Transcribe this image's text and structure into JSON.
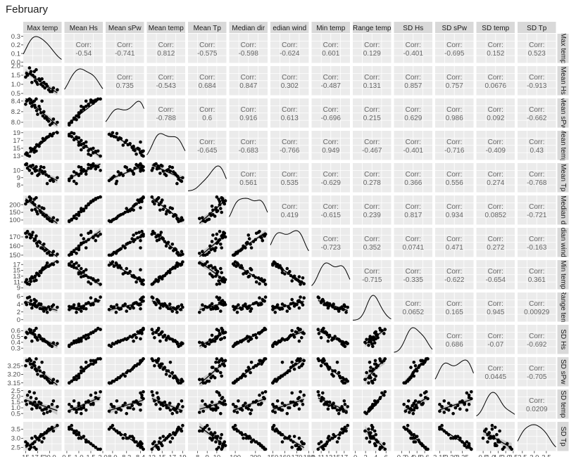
{
  "title": "February",
  "chart_data": {
    "type": "scatter",
    "variables": [
      "Max temp",
      "Mean Hs",
      "Mean sPw",
      "Mean temp",
      "Mean Tp",
      "Median dir",
      "Median wind",
      "Min temp",
      "Range temp",
      "SD Hs",
      "SD sPw",
      "SD temp",
      "SD Tp"
    ],
    "column_strip_labels": [
      "Max temp",
      "Mean Hs",
      "Mean sPw",
      "Mean temp",
      "Mean Tp",
      "Median dir",
      "edian wind",
      "Min temp",
      "Range temp",
      "SD Hs",
      "SD sPw",
      "SD temp",
      "SD Tp"
    ],
    "row_strip_labels": [
      "Max temp",
      "Mean Hs",
      "Mean sPw",
      "Mean temp",
      "Mean Tp",
      "Median d",
      "dian wind",
      "Min temp",
      "Range tem",
      "SD Hs",
      "SD sPw",
      "SD temp",
      "SD Tp"
    ],
    "corr_label": "Corr:",
    "correlations": [
      {
        "row": 0,
        "col": 1,
        "value": "-0.54"
      },
      {
        "row": 0,
        "col": 2,
        "value": "-0.741"
      },
      {
        "row": 0,
        "col": 3,
        "value": "0.812"
      },
      {
        "row": 0,
        "col": 4,
        "value": "-0.575"
      },
      {
        "row": 0,
        "col": 5,
        "value": "-0.598"
      },
      {
        "row": 0,
        "col": 6,
        "value": "-0.624"
      },
      {
        "row": 0,
        "col": 7,
        "value": "0.601"
      },
      {
        "row": 0,
        "col": 8,
        "value": "0.129"
      },
      {
        "row": 0,
        "col": 9,
        "value": "-0.401"
      },
      {
        "row": 0,
        "col": 10,
        "value": "-0.695"
      },
      {
        "row": 0,
        "col": 11,
        "value": "0.152"
      },
      {
        "row": 0,
        "col": 12,
        "value": "0.523"
      },
      {
        "row": 1,
        "col": 2,
        "value": "0.735"
      },
      {
        "row": 1,
        "col": 3,
        "value": "-0.543"
      },
      {
        "row": 1,
        "col": 4,
        "value": "0.684"
      },
      {
        "row": 1,
        "col": 5,
        "value": "0.847"
      },
      {
        "row": 1,
        "col": 6,
        "value": "0.302"
      },
      {
        "row": 1,
        "col": 7,
        "value": "-0.487"
      },
      {
        "row": 1,
        "col": 8,
        "value": "0.131"
      },
      {
        "row": 1,
        "col": 9,
        "value": "0.857"
      },
      {
        "row": 1,
        "col": 10,
        "value": "0.757"
      },
      {
        "row": 1,
        "col": 11,
        "value": "0.0676"
      },
      {
        "row": 1,
        "col": 12,
        "value": "-0.913"
      },
      {
        "row": 2,
        "col": 3,
        "value": "-0.788"
      },
      {
        "row": 2,
        "col": 4,
        "value": "0.6"
      },
      {
        "row": 2,
        "col": 5,
        "value": "0.916"
      },
      {
        "row": 2,
        "col": 6,
        "value": "0.613"
      },
      {
        "row": 2,
        "col": 7,
        "value": "-0.696"
      },
      {
        "row": 2,
        "col": 8,
        "value": "0.215"
      },
      {
        "row": 2,
        "col": 9,
        "value": "0.629"
      },
      {
        "row": 2,
        "col": 10,
        "value": "0.986"
      },
      {
        "row": 2,
        "col": 11,
        "value": "0.092"
      },
      {
        "row": 2,
        "col": 12,
        "value": "-0.662"
      },
      {
        "row": 3,
        "col": 4,
        "value": "-0.645"
      },
      {
        "row": 3,
        "col": 5,
        "value": "-0.683"
      },
      {
        "row": 3,
        "col": 6,
        "value": "-0.766"
      },
      {
        "row": 3,
        "col": 7,
        "value": "0.949"
      },
      {
        "row": 3,
        "col": 8,
        "value": "-0.467"
      },
      {
        "row": 3,
        "col": 9,
        "value": "-0.401"
      },
      {
        "row": 3,
        "col": 10,
        "value": "-0.716"
      },
      {
        "row": 3,
        "col": 11,
        "value": "-0.409"
      },
      {
        "row": 3,
        "col": 12,
        "value": "0.43"
      },
      {
        "row": 4,
        "col": 5,
        "value": "0.561"
      },
      {
        "row": 4,
        "col": 6,
        "value": "0.535"
      },
      {
        "row": 4,
        "col": 7,
        "value": "-0.629"
      },
      {
        "row": 4,
        "col": 8,
        "value": "0.278"
      },
      {
        "row": 4,
        "col": 9,
        "value": "0.366"
      },
      {
        "row": 4,
        "col": 10,
        "value": "0.556"
      },
      {
        "row": 4,
        "col": 11,
        "value": "0.274"
      },
      {
        "row": 4,
        "col": 12,
        "value": "-0.768"
      },
      {
        "row": 5,
        "col": 6,
        "value": "0.419"
      },
      {
        "row": 5,
        "col": 7,
        "value": "-0.615"
      },
      {
        "row": 5,
        "col": 8,
        "value": "0.239"
      },
      {
        "row": 5,
        "col": 9,
        "value": "0.817"
      },
      {
        "row": 5,
        "col": 10,
        "value": "0.934"
      },
      {
        "row": 5,
        "col": 11,
        "value": "0.0852"
      },
      {
        "row": 5,
        "col": 12,
        "value": "-0.721"
      },
      {
        "row": 6,
        "col": 7,
        "value": "-0.723"
      },
      {
        "row": 6,
        "col": 8,
        "value": "0.352"
      },
      {
        "row": 6,
        "col": 9,
        "value": "0.0741"
      },
      {
        "row": 6,
        "col": 10,
        "value": "0.471"
      },
      {
        "row": 6,
        "col": 11,
        "value": "0.272"
      },
      {
        "row": 6,
        "col": 12,
        "value": "-0.163"
      },
      {
        "row": 7,
        "col": 8,
        "value": "-0.715"
      },
      {
        "row": 7,
        "col": 9,
        "value": "-0.335"
      },
      {
        "row": 7,
        "col": 10,
        "value": "-0.622"
      },
      {
        "row": 7,
        "col": 11,
        "value": "-0.654"
      },
      {
        "row": 7,
        "col": 12,
        "value": "0.361"
      },
      {
        "row": 8,
        "col": 9,
        "value": "0.0652"
      },
      {
        "row": 8,
        "col": 10,
        "value": "0.165"
      },
      {
        "row": 8,
        "col": 11,
        "value": "0.945"
      },
      {
        "row": 8,
        "col": 12,
        "value": "0.00929"
      },
      {
        "row": 9,
        "col": 10,
        "value": "0.686"
      },
      {
        "row": 9,
        "col": 11,
        "value": "-0.07"
      },
      {
        "row": 9,
        "col": 12,
        "value": "-0.692"
      },
      {
        "row": 10,
        "col": 11,
        "value": "0.0445"
      },
      {
        "row": 10,
        "col": 12,
        "value": "-0.705"
      },
      {
        "row": 11,
        "col": 12,
        "value": "0.0209"
      }
    ],
    "ranges": [
      [
        14.5,
        22.5
      ],
      [
        0.4,
        2.0
      ],
      [
        7.9,
        8.45
      ],
      [
        12,
        19.5
      ],
      [
        7,
        11
      ],
      [
        70,
        260
      ],
      [
        148,
        180
      ],
      [
        8.5,
        18.5
      ],
      [
        -0.5,
        7
      ],
      [
        0.2,
        0.7
      ],
      [
        3.13,
        3.3
      ],
      [
        0.05,
        2.6
      ],
      [
        2.3,
        3.9
      ]
    ],
    "y_axis_ticks": [
      {
        "row": 0,
        "labels": [
          "0.3",
          "0.2",
          "0.1",
          "0.0"
        ],
        "values": [
          0.3,
          0.2,
          0.1,
          0.0
        ],
        "range": [
          -0.01,
          0.33
        ]
      },
      {
        "row": 1,
        "labels": [
          "2.0",
          "1.5",
          "1.0",
          "0.5"
        ],
        "values": [
          2.0,
          1.5,
          1.0,
          0.5
        ]
      },
      {
        "row": 2,
        "labels": [
          "8.4",
          "8.2",
          "8.0"
        ],
        "values": [
          8.4,
          8.2,
          8.0
        ]
      },
      {
        "row": 3,
        "labels": [
          "19",
          "17",
          "15",
          "13"
        ],
        "values": [
          19,
          17,
          15,
          13
        ]
      },
      {
        "row": 4,
        "labels": [
          "10",
          "9",
          "8"
        ],
        "values": [
          10,
          9,
          8
        ]
      },
      {
        "row": 5,
        "labels": [
          "200",
          "150",
          "100"
        ],
        "values": [
          200,
          150,
          100
        ]
      },
      {
        "row": 6,
        "labels": [
          "170",
          "160",
          "150"
        ],
        "values": [
          170,
          160,
          150
        ]
      },
      {
        "row": 7,
        "labels": [
          "17",
          "15",
          "13",
          "11",
          "9"
        ],
        "values": [
          17,
          15,
          13,
          11,
          9
        ]
      },
      {
        "row": 8,
        "labels": [
          "6",
          "4",
          "2",
          "0"
        ],
        "values": [
          6,
          4,
          2,
          0
        ]
      },
      {
        "row": 9,
        "labels": [
          "0.6",
          "0.5",
          "0.4",
          "0.3"
        ],
        "values": [
          0.6,
          0.5,
          0.4,
          0.3
        ]
      },
      {
        "row": 10,
        "labels": [
          "3.25",
          "3.20",
          "3.15"
        ],
        "values": [
          3.25,
          3.2,
          3.15
        ]
      },
      {
        "row": 11,
        "labels": [
          "2.5",
          "2.0",
          "1.5",
          "1.0",
          "0.5"
        ],
        "values": [
          2.5,
          2.0,
          1.5,
          1.0,
          0.5
        ]
      },
      {
        "row": 12,
        "labels": [
          "3.5",
          "3.0",
          "2.5"
        ],
        "values": [
          3.5,
          3.0,
          2.5
        ]
      }
    ],
    "x_axis_ticks": [
      {
        "col": 0,
        "labels": [
          "15",
          "17.5",
          "20.0"
        ],
        "values": [
          15,
          17.5,
          20
        ]
      },
      {
        "col": 1,
        "labels": [
          "0.5",
          "1.0",
          "1.5",
          "2.0"
        ],
        "values": [
          0.5,
          1.0,
          1.5,
          2.0
        ]
      },
      {
        "col": 2,
        "labels": [
          "8.0",
          "8.2",
          "8.4"
        ],
        "values": [
          8.0,
          8.2,
          8.4
        ]
      },
      {
        "col": 3,
        "labels": [
          "13",
          "15",
          "17",
          "19"
        ],
        "values": [
          13,
          15,
          17,
          19
        ]
      },
      {
        "col": 4,
        "labels": [
          "8",
          "9",
          "10"
        ],
        "values": [
          8,
          9,
          10
        ]
      },
      {
        "col": 5,
        "labels": [
          "100",
          "200"
        ],
        "values": [
          100,
          200
        ]
      },
      {
        "col": 6,
        "labels": [
          "150",
          "160",
          "170",
          "180"
        ],
        "values": [
          150,
          160,
          170,
          180
        ]
      },
      {
        "col": 7,
        "labels": [
          "9",
          "11",
          "13",
          "15",
          "17"
        ],
        "values": [
          9,
          11,
          13,
          15,
          17
        ]
      },
      {
        "col": 8,
        "labels": [
          "0",
          "2",
          "4",
          "6"
        ],
        "values": [
          0,
          2,
          4,
          6
        ]
      },
      {
        "col": 9,
        "labels": [
          "0.3",
          "0.4",
          "0.5",
          "0.6"
        ],
        "values": [
          0.3,
          0.4,
          0.5,
          0.6
        ]
      },
      {
        "col": 10,
        "labels": [
          "3.15",
          "3.20",
          "3.25"
        ],
        "values": [
          3.15,
          3.2,
          3.25
        ]
      },
      {
        "col": 11,
        "labels": [
          "0.5",
          "1.0",
          "1.5",
          "2.0",
          "2.5"
        ],
        "values": [
          0.5,
          1.0,
          1.5,
          2.0,
          2.5
        ]
      },
      {
        "col": 12,
        "labels": [
          "2.5",
          "3.0",
          "3.5"
        ],
        "values": [
          2.5,
          3.0,
          3.5
        ]
      }
    ],
    "observations": [
      [
        16.3,
        1.1,
        8.3,
        14.6,
        9.6,
        165,
        172,
        12.8,
        3.0,
        0.42,
        3.24,
        0.9,
        3.0
      ],
      [
        18.4,
        1.3,
        8.4,
        16.6,
        9.9,
        180,
        158,
        15.2,
        2.8,
        0.46,
        3.27,
        0.8,
        2.8
      ],
      [
        15.4,
        1.5,
        8.42,
        13.2,
        10.3,
        220,
        176,
        10.4,
        5.6,
        0.55,
        3.28,
        2.1,
        2.7
      ],
      [
        20.1,
        0.6,
        7.95,
        18.6,
        8.6,
        95,
        150,
        16.8,
        2.6,
        0.35,
        3.15,
        0.7,
        3.5
      ],
      [
        17.2,
        1.8,
        8.44,
        14.3,
        10.5,
        245,
        171,
        11.6,
        4.8,
        0.64,
        3.29,
        1.8,
        2.4
      ],
      [
        19.5,
        0.9,
        8.05,
        17.9,
        8.2,
        110,
        152,
        17.5,
        1.9,
        0.4,
        3.17,
        0.6,
        3.4
      ],
      [
        16.0,
        1.6,
        8.36,
        15.0,
        10.6,
        230,
        169,
        12.1,
        4.0,
        0.58,
        3.26,
        1.4,
        2.6
      ],
      [
        21.6,
        0.7,
        8.0,
        19.0,
        9.0,
        100,
        151,
        17.9,
        3.2,
        0.38,
        3.16,
        1.1,
        3.7
      ],
      [
        18.0,
        1.2,
        8.25,
        16.2,
        10.1,
        160,
        164,
        14.6,
        2.9,
        0.5,
        3.22,
        1.0,
        3.1
      ],
      [
        15.0,
        1.4,
        8.34,
        13.5,
        10.8,
        205,
        174,
        11.0,
        4.4,
        0.48,
        3.25,
        1.6,
        2.8
      ],
      [
        17.5,
        1.0,
        8.15,
        15.8,
        9.3,
        140,
        160,
        13.8,
        3.6,
        0.44,
        3.2,
        1.2,
        3.0
      ],
      [
        19.0,
        0.8,
        8.08,
        17.2,
        9.8,
        125,
        155,
        16.0,
        3.0,
        0.42,
        3.18,
        0.9,
        3.3
      ],
      [
        16.8,
        1.7,
        8.4,
        14.0,
        10.2,
        235,
        166,
        11.4,
        5.2,
        0.6,
        3.27,
        2.3,
        2.5
      ],
      [
        20.5,
        0.6,
        7.98,
        18.2,
        8.8,
        90,
        150,
        17.2,
        3.4,
        0.33,
        3.15,
        1.3,
        3.6
      ],
      [
        15.8,
        1.9,
        8.44,
        13.0,
        10.0,
        250,
        173,
        10.2,
        5.8,
        0.62,
        3.29,
        2.4,
        2.4
      ],
      [
        18.8,
        1.1,
        8.2,
        17.0,
        10.4,
        175,
        162,
        15.6,
        2.2,
        0.45,
        3.21,
        0.5,
        3.0
      ],
      [
        17.8,
        1.3,
        8.3,
        15.5,
        9.5,
        190,
        165,
        13.2,
        4.1,
        0.52,
        3.24,
        1.5,
        2.9
      ],
      [
        16.5,
        1.5,
        8.38,
        14.8,
        10.7,
        215,
        175,
        12.4,
        3.8,
        0.56,
        3.26,
        1.3,
        2.7
      ],
      [
        19.8,
        0.7,
        8.02,
        18.0,
        9.2,
        105,
        153,
        16.4,
        3.3,
        0.37,
        3.16,
        1.1,
        3.5
      ],
      [
        17.0,
        1.2,
        8.28,
        15.2,
        9.9,
        170,
        168,
        13.0,
        3.5,
        0.49,
        3.23,
        1.2,
        3.1
      ],
      [
        18.2,
        1.0,
        8.18,
        16.5,
        10.5,
        150,
        158,
        14.2,
        4.0,
        0.46,
        3.19,
        1.4,
        3.2
      ],
      [
        15.2,
        1.6,
        8.4,
        13.8,
        10.9,
        225,
        170,
        11.8,
        3.9,
        0.57,
        3.28,
        1.3,
        2.6
      ],
      [
        20.8,
        0.8,
        8.06,
        18.8,
        8.5,
        115,
        154,
        17.0,
        3.8,
        0.39,
        3.17,
        1.6,
        3.4
      ],
      [
        16.9,
        1.4,
        8.32,
        14.4,
        10.3,
        200,
        167,
        12.6,
        4.3,
        0.53,
        3.25,
        1.5,
        2.8
      ],
      [
        18.6,
        0.9,
        8.12,
        17.5,
        9.6,
        135,
        157,
        15.8,
        2.8,
        0.43,
        3.19,
        0.8,
        3.2
      ],
      [
        17.3,
        1.1,
        8.22,
        15.9,
        10.0,
        155,
        163,
        14.0,
        3.3,
        0.47,
        3.22,
        1.0,
        3.0
      ],
      [
        19.3,
        1.0,
        8.1,
        17.7,
        9.4,
        130,
        156,
        16.6,
        2.7,
        0.41,
        3.18,
        0.9,
        3.3
      ],
      [
        16.1,
        1.7,
        8.42,
        14.2,
        10.6,
        240,
        172,
        11.2,
        4.9,
        0.61,
        3.28,
        1.9,
        2.5
      ]
    ]
  }
}
